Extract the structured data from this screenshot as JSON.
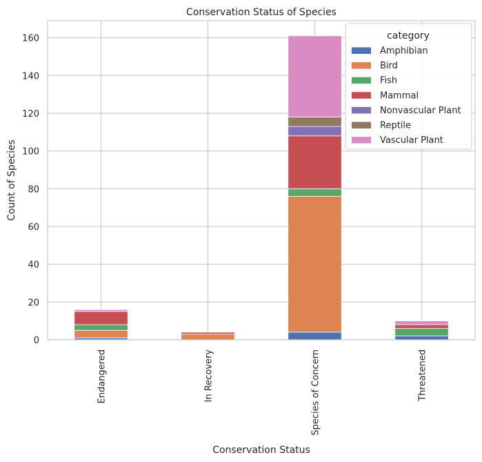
{
  "chart_data": {
    "type": "bar",
    "stacked": true,
    "title": "Conservation Status of Species",
    "xlabel": "Conservation Status",
    "ylabel": "Count of Species",
    "ylim": [
      0,
      169
    ],
    "yticks": [
      0,
      20,
      40,
      60,
      80,
      100,
      120,
      140,
      160
    ],
    "grid": true,
    "legend_title": "category",
    "legend_position": "top-right",
    "categories": [
      "Endangered",
      "In Recovery",
      "Species of Concern",
      "Threatened"
    ],
    "series": [
      {
        "name": "Amphibian",
        "color": "#4c72b0",
        "values": [
          1,
          0,
          4,
          2
        ]
      },
      {
        "name": "Bird",
        "color": "#dd8452",
        "values": [
          4,
          3,
          72,
          0
        ]
      },
      {
        "name": "Fish",
        "color": "#55a868",
        "values": [
          3,
          0,
          4,
          4
        ]
      },
      {
        "name": "Mammal",
        "color": "#c44e52",
        "values": [
          7,
          1,
          28,
          2
        ]
      },
      {
        "name": "Nonvascular Plant",
        "color": "#8172b3",
        "values": [
          0,
          0,
          5,
          0
        ]
      },
      {
        "name": "Reptile",
        "color": "#937860",
        "values": [
          0,
          0,
          5,
          0
        ]
      },
      {
        "name": "Vascular Plant",
        "color": "#da8bc3",
        "values": [
          1,
          0,
          43,
          2
        ]
      }
    ]
  }
}
